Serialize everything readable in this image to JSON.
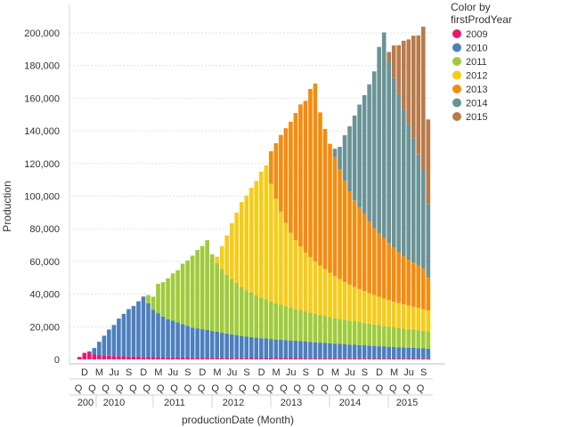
{
  "chart_data": {
    "type": "bar",
    "stacked": true,
    "ylabel": "Production",
    "xlabel": "productionDate (Month)",
    "ylim": [
      0,
      210000
    ],
    "y_ticks": [
      0,
      20000,
      40000,
      60000,
      80000,
      100000,
      120000,
      140000,
      160000,
      180000,
      200000
    ],
    "y_tick_labels": [
      "0",
      "20,000",
      "40,000",
      "60,000",
      "80,000",
      "100,000",
      "120,000",
      "140,000",
      "160,000",
      "180,000",
      "200,000"
    ],
    "grid": true,
    "legend": {
      "title": "Color by firstProdYear",
      "placement": "top-right"
    },
    "month_tick_labels": [
      "D",
      "M",
      "Ju",
      "S",
      "D",
      "M",
      "Ju",
      "S",
      "D",
      "M",
      "Ju",
      "S",
      "D",
      "M",
      "Ju",
      "S",
      "D",
      "M",
      "Ju",
      "S",
      "D",
      "M",
      "Ju",
      "S"
    ],
    "quarter_tick_labels": [
      "Q",
      "Q",
      "Q",
      "Q",
      "Q",
      "Q",
      "Q",
      "Q",
      "Q",
      "Q",
      "Q",
      "Q",
      "Q",
      "Q",
      "Q",
      "Q",
      "Q",
      "Q",
      "Q",
      "Q",
      "Q",
      "Q",
      "Q",
      "Q",
      "Q",
      "Q"
    ],
    "year_tick_labels": [
      "200",
      "2010",
      "2011",
      "2012",
      "2013",
      "2014",
      "2015"
    ],
    "categories": [
      "2009-10",
      "2009-11",
      "2009-12",
      "2010-01",
      "2010-02",
      "2010-03",
      "2010-04",
      "2010-05",
      "2010-06",
      "2010-07",
      "2010-08",
      "2010-09",
      "2010-10",
      "2010-11",
      "2010-12",
      "2011-01",
      "2011-02",
      "2011-03",
      "2011-04",
      "2011-05",
      "2011-06",
      "2011-07",
      "2011-08",
      "2011-09",
      "2011-10",
      "2011-11",
      "2011-12",
      "2012-01",
      "2012-02",
      "2012-03",
      "2012-04",
      "2012-05",
      "2012-06",
      "2012-07",
      "2012-08",
      "2012-09",
      "2012-10",
      "2012-11",
      "2012-12",
      "2013-01",
      "2013-02",
      "2013-03",
      "2013-04",
      "2013-05",
      "2013-06",
      "2013-07",
      "2013-08",
      "2013-09",
      "2013-10",
      "2013-11",
      "2013-12",
      "2014-01",
      "2014-02",
      "2014-03",
      "2014-04",
      "2014-05",
      "2014-06",
      "2014-07",
      "2014-08",
      "2014-09",
      "2014-10",
      "2014-11",
      "2014-12",
      "2015-01",
      "2015-02",
      "2015-03",
      "2015-04",
      "2015-05",
      "2015-06",
      "2015-07",
      "2015-08",
      "2015-09"
    ],
    "series": [
      {
        "name": "2009",
        "color": "#e8196e",
        "values": [
          1500,
          4000,
          4500,
          3000,
          2800,
          2500,
          2300,
          2100,
          2000,
          1900,
          1800,
          1700,
          1600,
          1500,
          1400,
          1400,
          1300,
          1300,
          1200,
          1200,
          1100,
          1100,
          1100,
          1000,
          1000,
          1000,
          1000,
          900,
          900,
          900,
          900,
          900,
          900,
          900,
          900,
          800,
          800,
          800,
          800,
          800,
          800,
          800,
          800,
          800,
          800,
          800,
          700,
          700,
          700,
          700,
          700,
          700,
          700,
          700,
          700,
          700,
          700,
          700,
          700,
          600,
          600,
          600,
          600,
          600,
          600,
          600,
          600,
          600,
          600,
          600,
          600,
          600
        ]
      },
      {
        "name": "2010",
        "color": "#4c7fbf",
        "values": [
          0,
          0,
          500,
          4000,
          8000,
          12000,
          16000,
          19000,
          23000,
          26000,
          29000,
          31000,
          34000,
          37000,
          33000,
          29000,
          27000,
          25000,
          23500,
          22500,
          21500,
          20500,
          19500,
          18500,
          18000,
          17500,
          17000,
          16500,
          16000,
          15500,
          15000,
          14500,
          14000,
          13500,
          13000,
          12800,
          12500,
          12200,
          12000,
          11700,
          11400,
          11200,
          11000,
          10800,
          10600,
          10400,
          10200,
          10000,
          9800,
          9600,
          9400,
          9200,
          9000,
          8800,
          8600,
          8400,
          8300,
          8100,
          8000,
          7800,
          7600,
          7500,
          7300,
          7200,
          7000,
          6900,
          6700,
          6600,
          6500,
          6300,
          6200,
          6000
        ]
      },
      {
        "name": "2011",
        "color": "#9fcb3b",
        "values": [
          0,
          0,
          0,
          0,
          0,
          0,
          0,
          0,
          0,
          0,
          0,
          0,
          0,
          0,
          5000,
          8000,
          18000,
          21000,
          25000,
          29000,
          32000,
          37000,
          40000,
          44000,
          48000,
          51000,
          55000,
          47000,
          42000,
          39000,
          36000,
          34000,
          32000,
          30000,
          28500,
          27500,
          26000,
          25000,
          24000,
          23000,
          22200,
          21500,
          20800,
          20000,
          19500,
          19000,
          18500,
          18000,
          17500,
          17000,
          16600,
          16200,
          15800,
          15400,
          15000,
          14700,
          14400,
          14100,
          13800,
          13500,
          13200,
          12900,
          12600,
          12300,
          12000,
          11800,
          11600,
          11400,
          11200,
          11000,
          10800,
          10600
        ]
      },
      {
        "name": "2012",
        "color": "#f5cc18",
        "values": [
          0,
          0,
          0,
          0,
          0,
          0,
          0,
          0,
          0,
          0,
          0,
          0,
          0,
          0,
          0,
          0,
          0,
          0,
          0,
          0,
          0,
          0,
          0,
          0,
          0,
          0,
          0,
          0,
          4000,
          14000,
          24000,
          34000,
          43000,
          52000,
          58000,
          64000,
          70000,
          77000,
          82000,
          72000,
          64000,
          57000,
          51000,
          46000,
          42000,
          39000,
          36000,
          34000,
          32000,
          30000,
          28500,
          27000,
          25500,
          24300,
          23000,
          22000,
          21000,
          20200,
          19400,
          18600,
          18000,
          17400,
          16800,
          16200,
          15700,
          15200,
          14800,
          14400,
          14000,
          13600,
          13200,
          12800
        ]
      },
      {
        "name": "2013",
        "color": "#f48c0f",
        "values": [
          0,
          0,
          0,
          0,
          0,
          0,
          0,
          0,
          0,
          0,
          0,
          0,
          0,
          0,
          0,
          0,
          0,
          0,
          0,
          0,
          0,
          0,
          0,
          0,
          0,
          0,
          0,
          0,
          0,
          0,
          0,
          0,
          0,
          0,
          0,
          0,
          0,
          0,
          0,
          20000,
          34000,
          47000,
          58000,
          68000,
          78000,
          87000,
          93000,
          103000,
          109000,
          94000,
          86000,
          79000,
          73000,
          67000,
          62000,
          57000,
          53000,
          50000,
          47000,
          44000,
          41000,
          39000,
          37000,
          35000,
          33000,
          31000,
          29500,
          28000,
          27000,
          26000,
          25000,
          20000
        ]
      },
      {
        "name": "2014",
        "color": "#6a9396",
        "values": [
          0,
          0,
          0,
          0,
          0,
          0,
          0,
          0,
          0,
          0,
          0,
          0,
          0,
          0,
          0,
          0,
          0,
          0,
          0,
          0,
          0,
          0,
          0,
          0,
          0,
          0,
          0,
          0,
          0,
          0,
          0,
          0,
          0,
          0,
          0,
          0,
          0,
          0,
          0,
          0,
          0,
          0,
          0,
          0,
          0,
          0,
          0,
          0,
          0,
          0,
          0,
          0,
          5000,
          14000,
          28000,
          40000,
          52000,
          63000,
          73000,
          84000,
          96000,
          114000,
          126000,
          111000,
          104000,
          97000,
          90000,
          83000,
          76000,
          68000,
          60000,
          45000
        ]
      },
      {
        "name": "2015",
        "color": "#b97b4a",
        "values": [
          0,
          0,
          0,
          0,
          0,
          0,
          0,
          0,
          0,
          0,
          0,
          0,
          0,
          0,
          0,
          0,
          0,
          0,
          0,
          0,
          0,
          0,
          0,
          0,
          0,
          0,
          0,
          0,
          0,
          0,
          0,
          0,
          0,
          0,
          0,
          0,
          0,
          0,
          0,
          0,
          0,
          0,
          0,
          0,
          0,
          0,
          0,
          0,
          0,
          0,
          0,
          0,
          0,
          0,
          0,
          0,
          0,
          0,
          0,
          0,
          0,
          0,
          0,
          6000,
          20000,
          30000,
          42000,
          52000,
          63000,
          73000,
          88000,
          52000
        ]
      }
    ]
  }
}
